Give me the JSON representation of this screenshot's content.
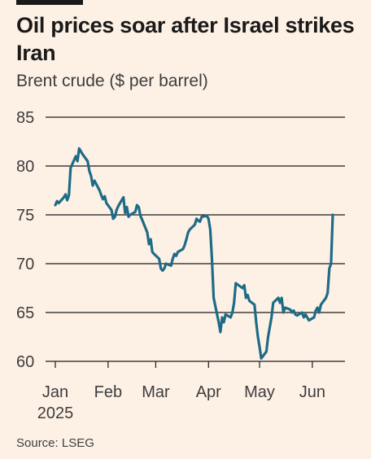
{
  "header": {
    "title": "Oil prices soar after Israel strikes Iran",
    "subtitle": "Brent crude ($ per barrel)"
  },
  "footer": {
    "source": "Source: LSEG"
  },
  "colors": {
    "line": "#1e6b86",
    "grid": "#1a1a1a",
    "background": "#fdf1e6",
    "text": "#3d3d3d"
  },
  "chart_data": {
    "type": "line",
    "title": "Oil prices soar after Israel strikes Iran",
    "subtitle": "Brent crude ($ per barrel)",
    "ylim": [
      60,
      85
    ],
    "yticks": [
      85,
      80,
      75,
      70,
      65,
      60
    ],
    "x_tick_labels": [
      {
        "label": "Jan",
        "sublabel": "2025",
        "x": "2025-01-01"
      },
      {
        "label": "Feb",
        "x": "2025-02-01"
      },
      {
        "label": "Mar",
        "x": "2025-03-01"
      },
      {
        "label": "Apr",
        "x": "2025-04-01"
      },
      {
        "label": "May",
        "x": "2025-05-01"
      },
      {
        "label": "Jun",
        "x": "2025-06-01"
      }
    ],
    "grid": "horizontal",
    "series": [
      {
        "x": [
          "2025-01-01",
          "2025-01-02",
          "2025-01-03",
          "2025-01-06",
          "2025-01-07",
          "2025-01-08",
          "2025-01-09",
          "2025-01-10",
          "2025-01-13",
          "2025-01-14",
          "2025-01-15",
          "2025-01-16",
          "2025-01-17",
          "2025-01-20",
          "2025-01-21",
          "2025-01-22",
          "2025-01-23",
          "2025-01-24",
          "2025-01-27",
          "2025-01-28",
          "2025-01-29",
          "2025-01-30",
          "2025-01-31",
          "2025-02-03",
          "2025-02-04",
          "2025-02-05",
          "2025-02-06",
          "2025-02-07",
          "2025-02-10",
          "2025-02-11",
          "2025-02-12",
          "2025-02-13",
          "2025-02-14",
          "2025-02-17",
          "2025-02-18",
          "2025-02-19",
          "2025-02-20",
          "2025-02-21",
          "2025-02-24",
          "2025-02-25",
          "2025-02-26",
          "2025-02-27",
          "2025-02-28",
          "2025-03-03",
          "2025-03-04",
          "2025-03-05",
          "2025-03-06",
          "2025-03-07",
          "2025-03-10",
          "2025-03-11",
          "2025-03-12",
          "2025-03-13",
          "2025-03-14",
          "2025-03-17",
          "2025-03-18",
          "2025-03-19",
          "2025-03-20",
          "2025-03-21",
          "2025-03-24",
          "2025-03-25",
          "2025-03-26",
          "2025-03-27",
          "2025-03-28",
          "2025-03-31",
          "2025-04-01",
          "2025-04-02",
          "2025-04-03",
          "2025-04-04",
          "2025-04-07",
          "2025-04-08",
          "2025-04-09",
          "2025-04-10",
          "2025-04-11",
          "2025-04-14",
          "2025-04-15",
          "2025-04-16",
          "2025-04-17",
          "2025-04-21",
          "2025-04-22",
          "2025-04-23",
          "2025-04-24",
          "2025-04-25",
          "2025-04-28",
          "2025-04-29",
          "2025-04-30",
          "2025-05-01",
          "2025-05-02",
          "2025-05-05",
          "2025-05-06",
          "2025-05-07",
          "2025-05-08",
          "2025-05-09",
          "2025-05-12",
          "2025-05-13",
          "2025-05-14",
          "2025-05-15",
          "2025-05-16",
          "2025-05-19",
          "2025-05-20",
          "2025-05-21",
          "2025-05-22",
          "2025-05-23",
          "2025-05-26",
          "2025-05-27",
          "2025-05-28",
          "2025-05-29",
          "2025-05-30",
          "2025-06-02",
          "2025-06-03",
          "2025-06-04",
          "2025-06-05",
          "2025-06-06",
          "2025-06-09",
          "2025-06-10",
          "2025-06-11",
          "2025-06-12",
          "2025-06-13"
        ],
        "values": [
          76.0,
          76.4,
          76.2,
          76.8,
          77.1,
          76.5,
          77.0,
          79.8,
          81.0,
          80.5,
          81.8,
          81.5,
          81.2,
          80.5,
          79.5,
          79.0,
          78.0,
          78.5,
          77.5,
          77.0,
          76.6,
          76.9,
          76.2,
          75.5,
          74.6,
          74.8,
          75.5,
          75.9,
          76.8,
          75.2,
          75.8,
          74.8,
          75.0,
          75.3,
          76.0,
          75.8,
          74.9,
          74.5,
          73.2,
          72.0,
          72.5,
          71.2,
          71.0,
          70.5,
          69.5,
          69.3,
          69.5,
          70.0,
          69.8,
          70.5,
          71.0,
          70.8,
          71.2,
          71.5,
          71.9,
          72.5,
          73.2,
          73.5,
          74.0,
          74.6,
          74.4,
          74.3,
          74.8,
          74.9,
          74.6,
          73.5,
          70.5,
          66.5,
          64.0,
          63.0,
          64.5,
          64.0,
          64.8,
          64.5,
          65.0,
          66.0,
          68.0,
          67.5,
          67.8,
          66.5,
          66.8,
          66.2,
          65.8,
          64.0,
          62.5,
          61.5,
          60.3,
          61.0,
          62.5,
          63.5,
          64.5,
          66.0,
          66.5,
          66.0,
          66.5,
          65.0,
          65.5,
          65.3,
          65.0,
          65.2,
          64.8,
          64.7,
          65.0,
          64.5,
          64.8,
          64.5,
          64.2,
          64.5,
          65.2,
          65.5,
          65.0,
          65.8,
          66.5,
          67.0,
          69.5,
          70.0,
          75.0
        ]
      }
    ]
  }
}
